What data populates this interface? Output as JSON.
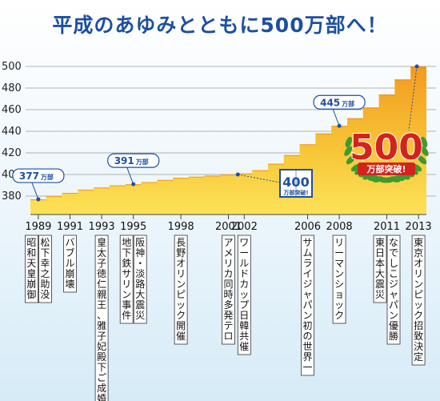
{
  "chart_data": {
    "type": "area",
    "title": "平成のあゆみとともに500万部へ！",
    "xlabel": "",
    "ylabel": "",
    "ylim": [
      360,
      510
    ],
    "yticks": [
      380,
      400,
      420,
      440,
      460,
      480,
      500
    ],
    "grid": true,
    "colors": {
      "area_top": "#f39a1e",
      "area_bottom": "#fde257",
      "grid": "#9a9a9a",
      "callout": "#1d4fa0",
      "title": "#1d4fa0",
      "badge_red": "#d3231d",
      "laurel": "#3f9a2e"
    },
    "x": [
      1989,
      1990,
      1991,
      1992,
      1993,
      1994,
      1995,
      1996,
      1997,
      1998,
      1999,
      2000,
      2001,
      2002,
      2003,
      2004,
      2005,
      2006,
      2007,
      2008,
      2009,
      2010,
      2011,
      2012,
      2013
    ],
    "values": [
      377,
      380,
      383,
      386,
      388,
      390,
      391,
      393,
      395,
      397,
      398,
      399,
      400,
      401,
      404,
      410,
      418,
      428,
      438,
      445,
      452,
      462,
      474,
      488,
      500
    ],
    "callouts": [
      {
        "x": 1989,
        "y": 377,
        "label": "377",
        "unit": "万部"
      },
      {
        "x": 1995,
        "y": 391,
        "label": "391",
        "unit": "万部"
      },
      {
        "x": 2008,
        "y": 445,
        "label": "445",
        "unit": "万部"
      }
    ],
    "milestone_400": {
      "x": 2002,
      "y": 400,
      "number": "400",
      "text": "万部突破!"
    },
    "milestone_500": {
      "number": "500",
      "text": "万部突破!"
    },
    "events": [
      {
        "year": "1989",
        "show_year": true,
        "columns": [
          "昭和天皇崩御",
          "松下幸之助没"
        ]
      },
      {
        "year": "1991",
        "show_year": true,
        "columns": [
          "バブル崩壊"
        ]
      },
      {
        "year": "1993",
        "show_year": true,
        "columns": [
          "皇太子徳仁親王、雅子妃殿下ご成婚"
        ]
      },
      {
        "year": "1995",
        "show_year": true,
        "columns": [
          "地下鉄サリン事件",
          "阪神・淡路大震災"
        ]
      },
      {
        "year": "1998",
        "show_year": true,
        "columns": [
          "長野オリンピック開催"
        ]
      },
      {
        "year": "2001",
        "show_year": true,
        "columns": [
          "アメリカ同時多発テロ"
        ]
      },
      {
        "year": "2002",
        "show_year": true,
        "columns": [
          "ワールドカップ日韓共催"
        ]
      },
      {
        "year": "2006",
        "show_year": true,
        "columns": [
          "サムライジャパン初の世界一"
        ]
      },
      {
        "year": "2008",
        "show_year": true,
        "columns": [
          "リーマンショック"
        ]
      },
      {
        "year": "2011",
        "show_year": true,
        "columns": [
          "東日本大震災",
          "なでしこジャパン優勝"
        ]
      },
      {
        "year": "2013",
        "show_year": true,
        "columns": [
          "東京オリンピック招致決定"
        ]
      }
    ]
  }
}
